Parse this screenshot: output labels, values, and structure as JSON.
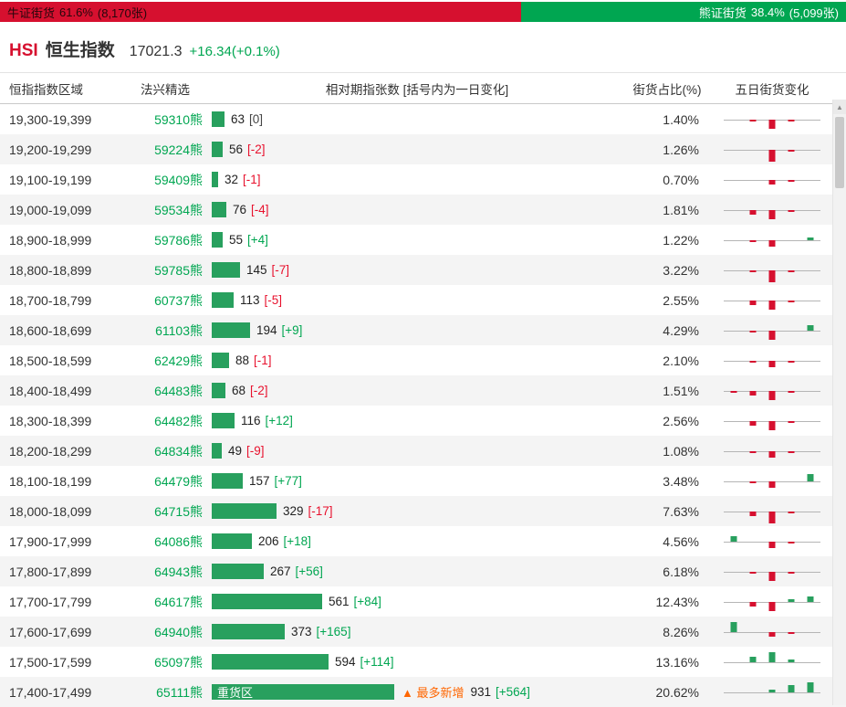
{
  "top_bar": {
    "bull": {
      "label": "牛证街货",
      "pct": "61.6%",
      "amount": "(8,170张)",
      "width_pct": 61.6
    },
    "bear": {
      "label": "熊证街货",
      "pct": "38.4%",
      "amount": "(5,099张)",
      "width_pct": 38.4
    }
  },
  "index_header": {
    "code": "HSI",
    "name": "恒生指数",
    "value": "17021.3",
    "change": "+16.34(+0.1%)"
  },
  "table": {
    "headers": [
      "恒指指数区域",
      "法兴精选",
      "相对期指张数 [括号内为一日变化]",
      "街货占比(%)",
      "五日街货变化"
    ],
    "rows": [
      {
        "range": "19,300-19,399",
        "code": "59310熊",
        "value": 63,
        "change": "[0]",
        "pct": "1.40%",
        "five_day": [
          0,
          -1,
          -4,
          -1,
          0
        ]
      },
      {
        "range": "19,200-19,299",
        "code": "59224熊",
        "value": 56,
        "change": "[-2]",
        "pct": "1.26%",
        "five_day": [
          0,
          0,
          -5,
          -1,
          0
        ]
      },
      {
        "range": "19,100-19,199",
        "code": "59409熊",
        "value": 32,
        "change": "[-1]",
        "pct": "0.70%",
        "five_day": [
          0,
          0,
          -2,
          -1,
          0
        ]
      },
      {
        "range": "19,000-19,099",
        "code": "59534熊",
        "value": 76,
        "change": "[-4]",
        "pct": "1.81%",
        "five_day": [
          0,
          -2,
          -4,
          -1,
          0
        ]
      },
      {
        "range": "18,900-18,999",
        "code": "59786熊",
        "value": 55,
        "change": "[+4]",
        "pct": "1.22%",
        "five_day": [
          0,
          -1,
          -3,
          0,
          1
        ]
      },
      {
        "range": "18,800-18,899",
        "code": "59785熊",
        "value": 145,
        "change": "[-7]",
        "pct": "3.22%",
        "five_day": [
          0,
          -1,
          -5,
          -1,
          0
        ]
      },
      {
        "range": "18,700-18,799",
        "code": "60737熊",
        "value": 113,
        "change": "[-5]",
        "pct": "2.55%",
        "five_day": [
          0,
          -2,
          -4,
          -1,
          0
        ]
      },
      {
        "range": "18,600-18,699",
        "code": "61103熊",
        "value": 194,
        "change": "[+9]",
        "pct": "4.29%",
        "five_day": [
          0,
          -1,
          -4,
          0,
          2
        ]
      },
      {
        "range": "18,500-18,599",
        "code": "62429熊",
        "value": 88,
        "change": "[-1]",
        "pct": "2.10%",
        "five_day": [
          0,
          -1,
          -3,
          -1,
          0
        ]
      },
      {
        "range": "18,400-18,499",
        "code": "64483熊",
        "value": 68,
        "change": "[-2]",
        "pct": "1.51%",
        "five_day": [
          -1,
          -2,
          -4,
          -1,
          0
        ]
      },
      {
        "range": "18,300-18,399",
        "code": "64482熊",
        "value": 116,
        "change": "[+12]",
        "pct": "2.56%",
        "five_day": [
          0,
          -2,
          -4,
          -1,
          0
        ]
      },
      {
        "range": "18,200-18,299",
        "code": "64834熊",
        "value": 49,
        "change": "[-9]",
        "pct": "1.08%",
        "five_day": [
          0,
          -1,
          -3,
          -1,
          0
        ]
      },
      {
        "range": "18,100-18,199",
        "code": "64479熊",
        "value": 157,
        "change": "[+77]",
        "pct": "3.48%",
        "five_day": [
          0,
          -1,
          -3,
          0,
          3
        ]
      },
      {
        "range": "18,000-18,099",
        "code": "64715熊",
        "value": 329,
        "change": "[-17]",
        "pct": "7.63%",
        "five_day": [
          0,
          -2,
          -5,
          -1,
          0
        ]
      },
      {
        "range": "17,900-17,999",
        "code": "64086熊",
        "value": 206,
        "change": "[+18]",
        "pct": "4.56%",
        "five_day": [
          2,
          0,
          -3,
          -1,
          0
        ]
      },
      {
        "range": "17,800-17,899",
        "code": "64943熊",
        "value": 267,
        "change": "[+56]",
        "pct": "6.18%",
        "five_day": [
          0,
          -1,
          -4,
          -1,
          0
        ]
      },
      {
        "range": "17,700-17,799",
        "code": "64617熊",
        "value": 561,
        "change": "[+84]",
        "pct": "12.43%",
        "five_day": [
          0,
          -2,
          -4,
          1,
          2
        ]
      },
      {
        "range": "17,600-17,699",
        "code": "64940熊",
        "value": 373,
        "change": "[+165]",
        "pct": "8.26%",
        "five_day": [
          4,
          0,
          -2,
          -1,
          0
        ]
      },
      {
        "range": "17,500-17,599",
        "code": "65097熊",
        "value": 594,
        "change": "[+114]",
        "pct": "13.16%",
        "five_day": [
          0,
          2,
          4,
          1,
          0
        ]
      },
      {
        "range": "17,400-17,499",
        "code": "65111熊",
        "value": 931,
        "change": "[+564]",
        "pct": "20.62%",
        "bar_label": "重货区",
        "tag": "▲ 最多新增",
        "five_day": [
          0,
          0,
          1,
          3,
          4
        ]
      }
    ]
  },
  "colors": {
    "bull_red": "#d6102f",
    "bear_green": "#00a651",
    "bar_green": "#28a05e",
    "negative_red": "#e8112d",
    "highlight_orange": "#ff6600"
  },
  "icons": {
    "scrollbar_up": "▲"
  }
}
